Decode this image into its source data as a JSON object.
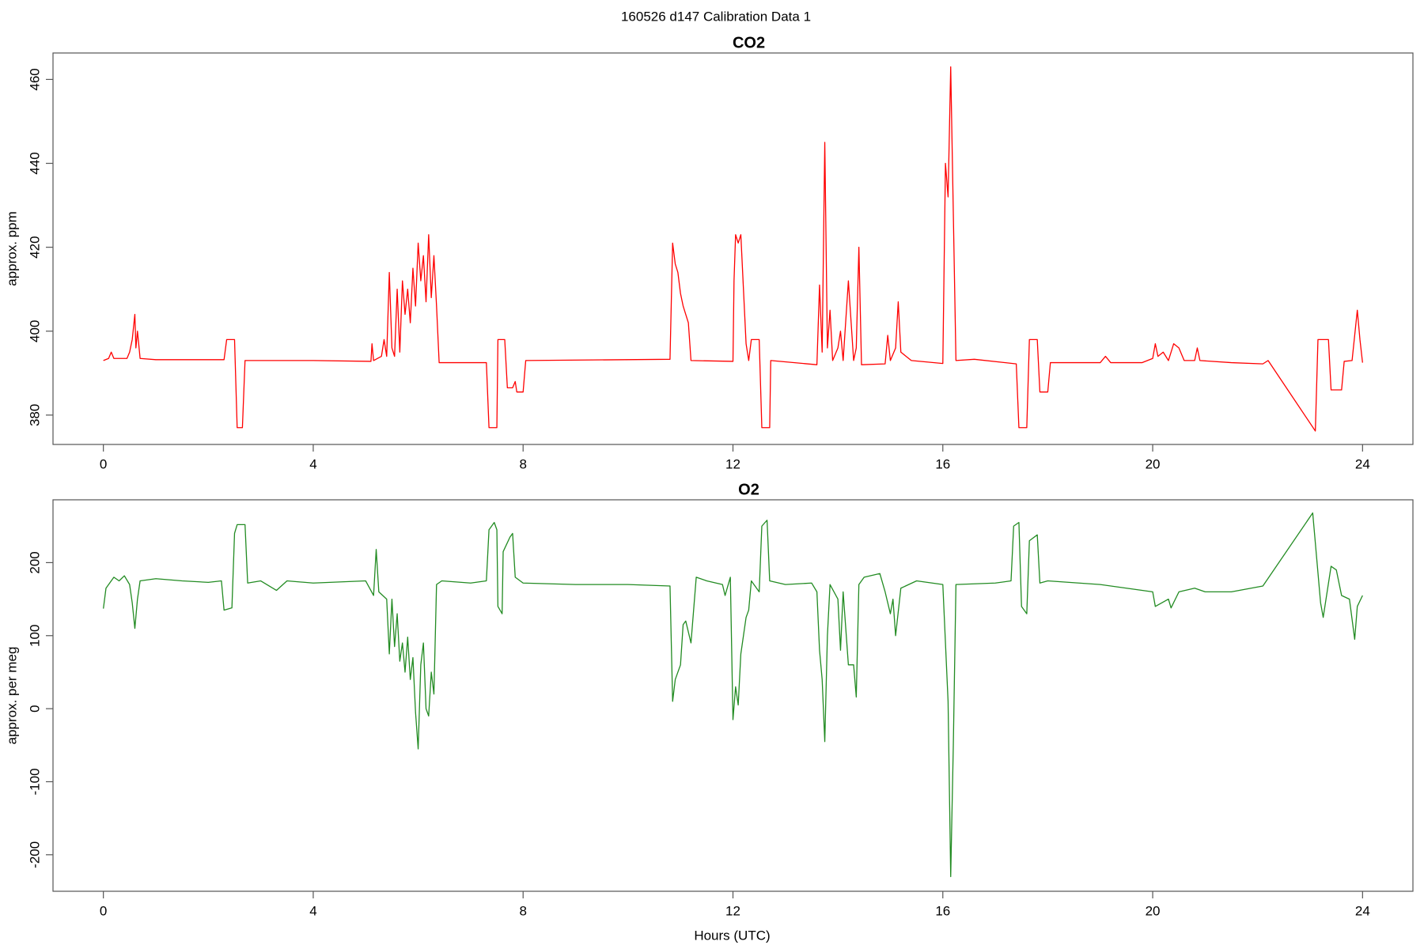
{
  "title": "160526   d147   Calibration Data 1",
  "chart_data": [
    {
      "type": "line",
      "title": "CO2",
      "ylabel": "approx. ppm",
      "color": "#ff0000",
      "xlim": [
        -0.96,
        24.96
      ],
      "xticks": [
        0,
        4,
        8,
        12,
        16,
        20,
        24
      ],
      "ylim": [
        373,
        466.3
      ],
      "yticks": [
        380,
        400,
        420,
        440,
        460
      ],
      "x": [
        0.0,
        0.1,
        0.15,
        0.2,
        0.3,
        0.45,
        0.5,
        0.55,
        0.6,
        0.62,
        0.65,
        0.7,
        1.0,
        2.3,
        2.35,
        2.5,
        2.55,
        2.65,
        2.7,
        4.0,
        5.1,
        5.12,
        5.15,
        5.3,
        5.35,
        5.4,
        5.45,
        5.5,
        5.55,
        5.6,
        5.65,
        5.7,
        5.75,
        5.8,
        5.85,
        5.9,
        5.95,
        6.0,
        6.05,
        6.1,
        6.15,
        6.2,
        6.25,
        6.3,
        6.35,
        6.4,
        7.3,
        7.35,
        7.5,
        7.52,
        7.65,
        7.7,
        7.8,
        7.85,
        7.88,
        8.0,
        8.05,
        10.8,
        10.85,
        10.9,
        10.95,
        11.0,
        11.05,
        11.1,
        11.15,
        11.2,
        12.0,
        12.02,
        12.05,
        12.1,
        12.15,
        12.2,
        12.25,
        12.3,
        12.35,
        12.5,
        12.55,
        12.7,
        12.72,
        13.6,
        13.65,
        13.7,
        13.75,
        13.8,
        13.85,
        13.9,
        14.0,
        14.05,
        14.1,
        14.2,
        14.3,
        14.35,
        14.4,
        14.45,
        14.9,
        14.95,
        15.0,
        15.1,
        15.15,
        15.2,
        15.3,
        15.4,
        16.0,
        16.05,
        16.1,
        16.15,
        16.25,
        16.6,
        17.4,
        17.45,
        17.6,
        17.65,
        17.8,
        17.85,
        18.0,
        18.05,
        19.0,
        19.1,
        19.2,
        19.8,
        20.0,
        20.05,
        20.1,
        20.2,
        20.3,
        20.4,
        20.5,
        20.6,
        20.8,
        20.85,
        20.9,
        21.5,
        22.1,
        22.2,
        23.1,
        23.15,
        23.35,
        23.4,
        23.6,
        23.65,
        23.8,
        23.85,
        23.9,
        23.95,
        24.0
      ],
      "values": [
        393,
        393.5,
        395,
        393.5,
        393.5,
        393.5,
        395,
        398,
        404,
        396,
        400,
        393.5,
        393.2,
        393.2,
        398,
        398,
        377,
        377,
        393,
        393,
        392.8,
        397,
        393,
        394,
        398,
        394,
        414,
        396,
        394,
        410,
        395,
        412,
        404,
        410,
        402,
        415,
        406,
        421,
        412,
        418,
        407,
        423,
        408,
        418,
        406,
        392.5,
        392.5,
        377,
        377,
        398,
        398,
        386.5,
        386.5,
        388,
        385.5,
        385.5,
        393,
        393.3,
        421,
        416,
        414,
        409,
        406,
        404,
        402,
        393,
        392.8,
        412,
        423,
        421,
        423,
        410,
        397,
        393,
        398,
        398,
        377,
        377,
        393,
        392,
        411,
        395,
        445,
        396,
        405,
        393,
        396,
        400,
        393,
        412,
        393,
        396,
        420,
        392,
        392.2,
        399,
        393,
        396,
        407,
        395,
        394,
        393,
        392.3,
        440,
        432,
        463,
        393,
        393.3,
        392.2,
        377,
        377,
        398,
        398,
        385.5,
        385.5,
        392.5,
        392.5,
        394,
        392.5,
        392.5,
        393.5,
        397,
        394,
        395,
        393,
        397,
        396,
        393,
        393,
        396,
        393,
        392.5,
        392.2,
        393,
        376.2,
        398,
        398,
        386,
        386,
        392.8,
        393,
        399,
        405,
        398,
        392.5
      ]
    },
    {
      "type": "line",
      "title": "O2",
      "ylabel": "approx. per meg",
      "xlabel": "Hours (UTC)",
      "color": "#228b22",
      "xlim": [
        -0.96,
        24.96
      ],
      "xticks": [
        0,
        4,
        8,
        12,
        16,
        20,
        24
      ],
      "ylim": [
        -250,
        286
      ],
      "yticks": [
        -200,
        -100,
        0,
        100,
        200
      ],
      "x": [
        0,
        0.05,
        0.1,
        0.2,
        0.3,
        0.4,
        0.5,
        0.55,
        0.6,
        0.65,
        0.7,
        1.0,
        1.5,
        2.0,
        2.25,
        2.3,
        2.45,
        2.5,
        2.55,
        2.7,
        2.75,
        3.0,
        3.3,
        3.5,
        4.0,
        5.0,
        5.15,
        5.2,
        5.25,
        5.4,
        5.45,
        5.5,
        5.55,
        5.6,
        5.65,
        5.7,
        5.75,
        5.8,
        5.85,
        5.9,
        5.95,
        6.0,
        6.05,
        6.1,
        6.15,
        6.2,
        6.25,
        6.3,
        6.35,
        6.45,
        7.0,
        7.3,
        7.35,
        7.45,
        7.5,
        7.52,
        7.6,
        7.62,
        7.75,
        7.8,
        7.85,
        8.0,
        9.0,
        10.0,
        10.8,
        10.85,
        10.9,
        11.0,
        11.05,
        11.1,
        11.2,
        11.3,
        11.5,
        11.8,
        11.85,
        11.95,
        12.0,
        12.05,
        12.1,
        12.15,
        12.25,
        12.3,
        12.35,
        12.5,
        12.55,
        12.65,
        12.7,
        13.0,
        13.5,
        13.6,
        13.65,
        13.7,
        13.75,
        13.8,
        13.85,
        14.0,
        14.05,
        14.1,
        14.2,
        14.3,
        14.35,
        14.4,
        14.5,
        14.8,
        14.9,
        15.0,
        15.05,
        15.1,
        15.2,
        15.5,
        16.0,
        16.1,
        16.15,
        16.2,
        16.25,
        17.0,
        17.3,
        17.35,
        17.45,
        17.5,
        17.6,
        17.65,
        17.8,
        17.85,
        18.0,
        19.0,
        19.5,
        20.0,
        20.05,
        20.3,
        20.35,
        20.5,
        20.8,
        21.0,
        21.5,
        22.1,
        23.05,
        23.2,
        23.25,
        23.4,
        23.5,
        23.6,
        23.75,
        23.85,
        23.9,
        24.0
      ],
      "values": [
        137,
        165,
        170,
        180,
        175,
        182,
        170,
        145,
        110,
        150,
        175,
        178,
        175,
        173,
        175,
        135,
        138,
        240,
        252,
        252,
        172,
        175,
        162,
        175,
        172,
        175,
        155,
        218,
        160,
        150,
        75,
        150,
        85,
        130,
        65,
        90,
        50,
        98,
        40,
        70,
        -5,
        -55,
        60,
        90,
        0,
        -10,
        50,
        20,
        170,
        175,
        172,
        175,
        245,
        255,
        245,
        140,
        130,
        215,
        235,
        240,
        180,
        172,
        170,
        170,
        168,
        10,
        40,
        60,
        115,
        120,
        90,
        180,
        175,
        170,
        155,
        180,
        -15,
        30,
        5,
        75,
        125,
        135,
        175,
        160,
        250,
        258,
        175,
        170,
        172,
        160,
        80,
        40,
        -45,
        100,
        170,
        150,
        80,
        160,
        60,
        60,
        16,
        170,
        180,
        185,
        160,
        130,
        150,
        100,
        165,
        175,
        170,
        10,
        -230,
        -50,
        170,
        172,
        175,
        250,
        255,
        140,
        130,
        230,
        238,
        172,
        175,
        170,
        165,
        160,
        140,
        150,
        138,
        160,
        165,
        160,
        160,
        168,
        268,
        145,
        125,
        195,
        190,
        155,
        150,
        95,
        140,
        155
      ]
    }
  ]
}
